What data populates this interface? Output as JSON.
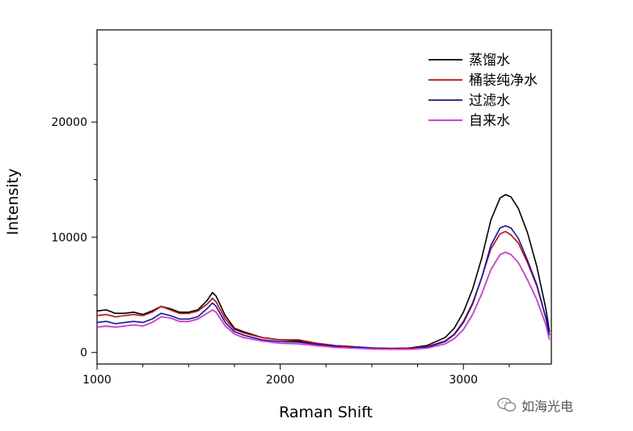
{
  "chart_data": {
    "type": "line",
    "xlabel": "Raman Shift",
    "ylabel": "Intensity",
    "xlim": [
      1000,
      3480
    ],
    "ylim": [
      -1000,
      28000
    ],
    "xticks": [
      1000,
      2000,
      3000
    ],
    "yticks": [
      0,
      10000,
      20000
    ],
    "xtick_labels": [
      "1000",
      "2000",
      "3000"
    ],
    "ytick_labels": [
      "0",
      "10000",
      "20000"
    ],
    "grid": false,
    "legend_position": "top-right",
    "series": [
      {
        "name": "蒸馏水",
        "color": "#000000",
        "x": [
          1000,
          1050,
          1100,
          1150,
          1200,
          1250,
          1300,
          1350,
          1400,
          1450,
          1500,
          1550,
          1600,
          1630,
          1650,
          1700,
          1750,
          1800,
          1900,
          2000,
          2100,
          2200,
          2300,
          2400,
          2500,
          2600,
          2700,
          2800,
          2900,
          2950,
          3000,
          3050,
          3100,
          3150,
          3200,
          3230,
          3260,
          3300,
          3350,
          3400,
          3450,
          3470
        ],
        "y": [
          3600,
          3700,
          3400,
          3400,
          3500,
          3300,
          3600,
          4000,
          3800,
          3500,
          3500,
          3700,
          4500,
          5200,
          4900,
          3200,
          2100,
          1800,
          1300,
          1100,
          1000,
          800,
          600,
          500,
          400,
          350,
          380,
          600,
          1300,
          2100,
          3500,
          5500,
          8200,
          11500,
          13400,
          13700,
          13500,
          12500,
          10400,
          7500,
          3800,
          1800
        ]
      },
      {
        "name": "桶装纯净水",
        "color": "#e00000",
        "x": [
          1000,
          1050,
          1100,
          1150,
          1200,
          1250,
          1300,
          1350,
          1400,
          1450,
          1500,
          1550,
          1600,
          1630,
          1650,
          1700,
          1750,
          1800,
          1900,
          2000,
          2100,
          2200,
          2300,
          2400,
          2500,
          2600,
          2700,
          2800,
          2900,
          2950,
          3000,
          3050,
          3100,
          3150,
          3200,
          3230,
          3260,
          3300,
          3350,
          3400,
          3450,
          3470
        ],
        "y": [
          3200,
          3300,
          3100,
          3200,
          3300,
          3200,
          3500,
          4000,
          3700,
          3400,
          3400,
          3600,
          4200,
          4700,
          4400,
          2900,
          2000,
          1700,
          1300,
          1100,
          1100,
          800,
          600,
          500,
          400,
          350,
          350,
          500,
          1000,
          1600,
          2700,
          4300,
          6500,
          9000,
          10300,
          10500,
          10200,
          9500,
          7800,
          5800,
          3000,
          1500
        ]
      },
      {
        "name": "过滤水",
        "color": "#1010c8",
        "x": [
          1000,
          1050,
          1100,
          1150,
          1200,
          1250,
          1300,
          1350,
          1400,
          1450,
          1500,
          1550,
          1600,
          1630,
          1650,
          1700,
          1750,
          1800,
          1900,
          2000,
          2100,
          2200,
          2300,
          2400,
          2500,
          2600,
          2700,
          2800,
          2900,
          2950,
          3000,
          3050,
          3100,
          3150,
          3200,
          3230,
          3260,
          3300,
          3350,
          3400,
          3450,
          3470
        ],
        "y": [
          2600,
          2700,
          2500,
          2600,
          2700,
          2600,
          2900,
          3400,
          3200,
          2900,
          2900,
          3100,
          3800,
          4300,
          4000,
          2600,
          1800,
          1500,
          1100,
          950,
          900,
          700,
          550,
          450,
          380,
          330,
          320,
          450,
          950,
          1550,
          2600,
          4200,
          6500,
          9300,
          10800,
          11000,
          10800,
          9900,
          8000,
          5900,
          3000,
          1500
        ]
      },
      {
        "name": "自来水",
        "color": "#e020e0",
        "x": [
          1000,
          1050,
          1100,
          1150,
          1200,
          1250,
          1300,
          1350,
          1400,
          1450,
          1500,
          1550,
          1600,
          1630,
          1650,
          1700,
          1750,
          1800,
          1900,
          2000,
          2100,
          2200,
          2300,
          2400,
          2500,
          2600,
          2700,
          2800,
          2900,
          2950,
          3000,
          3050,
          3100,
          3150,
          3200,
          3230,
          3260,
          3300,
          3350,
          3400,
          3450,
          3470
        ],
        "y": [
          2200,
          2300,
          2200,
          2300,
          2400,
          2300,
          2600,
          3100,
          3000,
          2700,
          2700,
          2900,
          3400,
          3700,
          3500,
          2300,
          1600,
          1300,
          1000,
          800,
          750,
          600,
          450,
          380,
          320,
          280,
          280,
          380,
          750,
          1200,
          2000,
          3300,
          5100,
          7200,
          8500,
          8700,
          8500,
          7800,
          6300,
          4600,
          2400,
          1100
        ]
      }
    ]
  },
  "watermark": {
    "text": "如海光电",
    "icon": "wechat-icon"
  }
}
